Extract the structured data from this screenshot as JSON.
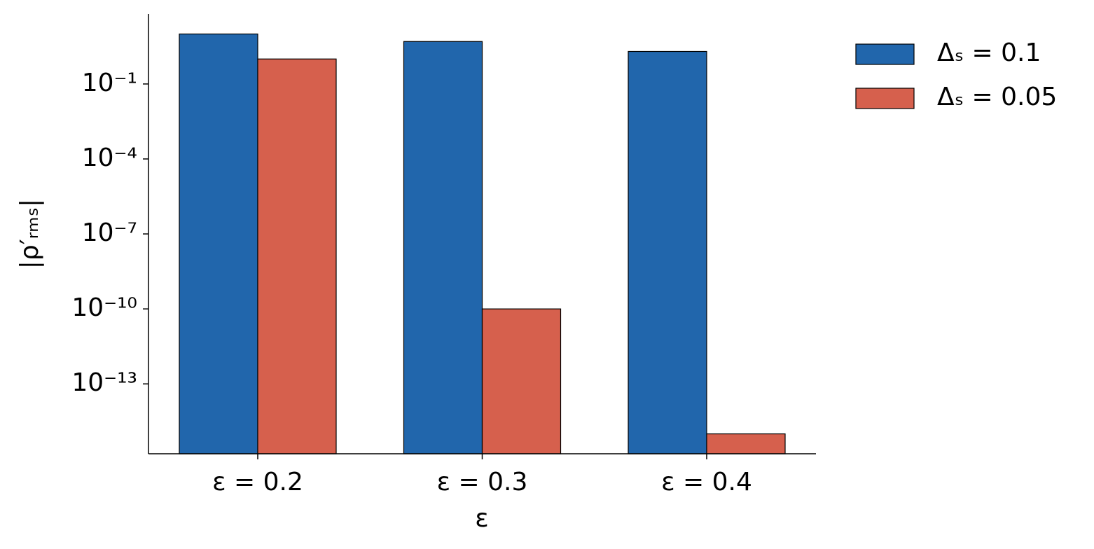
{
  "chart_data": {
    "type": "bar",
    "x_label": "ε",
    "y_label": "|ρ′ᵣₘₛ|",
    "categories": [
      "ε = 0.2",
      "ε = 0.3",
      "ε = 0.4"
    ],
    "series": [
      {
        "name": "Δₛ = 0.1",
        "color": "#2166ac",
        "values": [
          10,
          5,
          2
        ]
      },
      {
        "name": "Δₛ = 0.05",
        "color": "#d6604d",
        "values": [
          1,
          1e-10,
          1e-15
        ]
      }
    ],
    "log_scale": true,
    "ylim": [
      1.6e-16,
      63
    ],
    "yticks": [
      {
        "value": 0.1,
        "label": "10⁻¹"
      },
      {
        "value": 0.0001,
        "label": "10⁻⁴"
      },
      {
        "value": 1e-07,
        "label": "10⁻⁷"
      },
      {
        "value": 1e-10,
        "label": "10⁻¹⁰"
      },
      {
        "value": 1e-13,
        "label": "10⁻¹³"
      }
    ],
    "legend": "outside-right"
  }
}
